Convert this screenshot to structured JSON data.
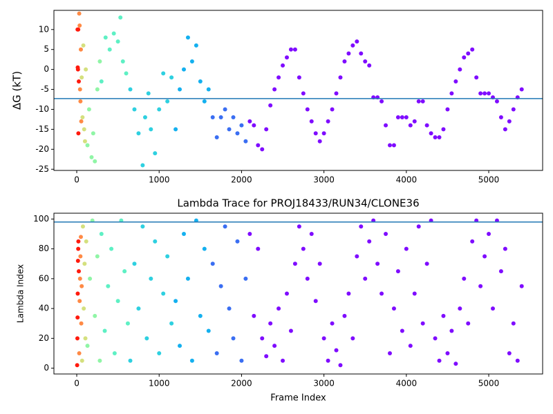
{
  "chart_data": [
    {
      "type": "scatter",
      "ylabel": "ΔG (kT)",
      "xlim": [
        -277,
        5654
      ],
      "ylim": [
        -25.3,
        14.8
      ],
      "xticks": [
        0,
        1000,
        2000,
        3000,
        4000,
        5000
      ],
      "yticks": [
        -25,
        -20,
        -15,
        -10,
        -5,
        0,
        5,
        10
      ],
      "hline": -7.3,
      "hline_color": "#1f77b4",
      "series": [
        {
          "color": "#ff1a0d",
          "x": [
            10,
            15,
            20,
            25,
            12,
            18
          ],
          "values": [
            10,
            0,
            -16,
            -3,
            0.5,
            10
          ]
        },
        {
          "color": "#ff8a45",
          "x": [
            30,
            35,
            40,
            45,
            50,
            55
          ],
          "values": [
            14,
            11,
            -5,
            -8,
            5,
            -13
          ]
        },
        {
          "color": "#d4e07e",
          "x": [
            60,
            70,
            80,
            90,
            100,
            110
          ],
          "values": [
            -2,
            -12,
            6,
            -15,
            -18,
            0
          ]
        },
        {
          "color": "#90f5a6",
          "x": [
            130,
            150,
            180,
            200,
            220,
            250,
            280
          ],
          "values": [
            -19,
            -10,
            -22,
            -16,
            -23,
            -5,
            2
          ]
        },
        {
          "color": "#5ef0c4",
          "x": [
            300,
            350,
            400,
            450,
            500,
            530,
            560,
            600
          ],
          "values": [
            -3,
            8,
            5,
            9,
            7,
            13,
            2,
            -1
          ]
        },
        {
          "color": "#2ed0e0",
          "x": [
            650,
            700,
            750,
            800,
            830,
            870,
            900,
            950,
            1000,
            1050,
            1100,
            1150
          ],
          "values": [
            -5,
            -10,
            -16,
            -24,
            -12,
            -6,
            -15,
            -21,
            -10,
            -1,
            -8,
            -2
          ]
        },
        {
          "color": "#14b0ef",
          "x": [
            1200,
            1250,
            1300,
            1350,
            1400,
            1450,
            1500,
            1550,
            1600
          ],
          "values": [
            -15,
            -5,
            0,
            8,
            2,
            6,
            -3,
            -8,
            -5
          ]
        },
        {
          "color": "#3a6ef2",
          "x": [
            1650,
            1700,
            1750,
            1800,
            1850,
            1900,
            1950,
            2000,
            2050
          ],
          "values": [
            -12,
            -17,
            -12,
            -10,
            -15,
            -12,
            -16,
            -14,
            -18
          ]
        },
        {
          "color": "#7f0cff",
          "x": [
            2100,
            2150,
            2200,
            2250,
            2300,
            2350,
            2400,
            2450,
            2500,
            2550,
            2600,
            2650,
            2700,
            2750,
            2800,
            2850,
            2900,
            2950,
            3000,
            3050,
            3100,
            3150,
            3200,
            3250,
            3300,
            3350,
            3400,
            3450,
            3500,
            3550,
            3600,
            3650,
            3700,
            3750,
            3800,
            3850,
            3900,
            3950,
            4000,
            4050,
            4100,
            4150,
            4200,
            4250,
            4300,
            4350,
            4400,
            4450,
            4500,
            4550,
            4600,
            4650,
            4700,
            4750,
            4800,
            4850,
            4900,
            4950,
            5000,
            5050,
            5100,
            5150,
            5200,
            5250,
            5300,
            5350,
            5400
          ],
          "values": [
            -13,
            -14,
            -19,
            -20,
            -15,
            -9,
            -5,
            -2,
            1,
            3,
            5,
            5,
            -2,
            -6,
            -10,
            -13,
            -16,
            -18,
            -16,
            -13,
            -10,
            -6,
            -2,
            2,
            4,
            6,
            7,
            4,
            2,
            1,
            -7,
            -7,
            -8,
            -14,
            -19,
            -19,
            -12,
            -12,
            -12,
            -14,
            -13,
            -8,
            -8,
            -14,
            -16,
            -17,
            -17,
            -15,
            -10,
            -6,
            -3,
            0,
            3,
            4,
            5,
            -2,
            -6,
            -6,
            -6,
            -7,
            -8,
            -12,
            -15,
            -13,
            -10,
            -7,
            -5
          ]
        }
      ]
    },
    {
      "type": "scatter",
      "title": "Lambda Trace for PROJ18433/RUN34/CLONE36",
      "xlabel": "Frame Index",
      "ylabel": "Lambda Index",
      "xlim": [
        -277,
        5654
      ],
      "ylim": [
        -3.9,
        103.9
      ],
      "xticks": [
        0,
        1000,
        2000,
        3000,
        4000,
        5000
      ],
      "yticks": [
        0,
        20,
        40,
        60,
        80,
        100
      ],
      "hline": 98,
      "hline_color": "#1f77b4",
      "series": [
        {
          "color": "#ff1a0d",
          "x": [
            5,
            8,
            10,
            12,
            15,
            18,
            20,
            25
          ],
          "values": [
            2,
            20,
            34,
            50,
            72,
            80,
            85,
            65
          ]
        },
        {
          "color": "#ff8a45",
          "x": [
            30,
            35,
            40,
            45,
            50,
            55,
            60
          ],
          "values": [
            10,
            45,
            60,
            75,
            88,
            30,
            55
          ]
        },
        {
          "color": "#d4e07e",
          "x": [
            65,
            75,
            85,
            95,
            105,
            115
          ],
          "values": [
            5,
            95,
            40,
            70,
            20,
            85
          ]
        },
        {
          "color": "#90f5a6",
          "x": [
            130,
            160,
            190,
            220,
            250,
            280
          ],
          "values": [
            15,
            60,
            99,
            35,
            75,
            5
          ]
        },
        {
          "color": "#5ef0c4",
          "x": [
            300,
            340,
            380,
            420,
            460,
            500,
            540,
            580,
            620
          ],
          "values": [
            90,
            25,
            55,
            80,
            10,
            45,
            99,
            65,
            30
          ]
        },
        {
          "color": "#2ed0e0",
          "x": [
            650,
            700,
            750,
            800,
            850,
            900,
            950,
            1000,
            1050,
            1100,
            1150
          ],
          "values": [
            5,
            70,
            40,
            95,
            20,
            60,
            85,
            10,
            50,
            75,
            30
          ]
        },
        {
          "color": "#14b0ef",
          "x": [
            1200,
            1250,
            1300,
            1350,
            1400,
            1450,
            1500,
            1550,
            1600
          ],
          "values": [
            45,
            15,
            90,
            60,
            5,
            99,
            35,
            80,
            25
          ]
        },
        {
          "color": "#3a6ef2",
          "x": [
            1650,
            1700,
            1750,
            1800,
            1850,
            1900,
            1950,
            2000,
            2050
          ],
          "values": [
            70,
            10,
            55,
            95,
            40,
            20,
            85,
            5,
            60
          ]
        },
        {
          "color": "#7f0cff",
          "x": [
            2100,
            2150,
            2200,
            2250,
            2300,
            2350,
            2400,
            2450,
            2500,
            2550,
            2600,
            2650,
            2700,
            2750,
            2800,
            2850,
            2900,
            2950,
            3000,
            3050,
            3100,
            3150,
            3200,
            3250,
            3300,
            3350,
            3400,
            3450,
            3500,
            3550,
            3600,
            3650,
            3700,
            3750,
            3800,
            3850,
            3900,
            3950,
            4000,
            4050,
            4100,
            4150,
            4200,
            4250,
            4300,
            4350,
            4400,
            4450,
            4500,
            4550,
            4600,
            4650,
            4700,
            4750,
            4800,
            4850,
            4900,
            4950,
            5000,
            5050,
            5100,
            5150,
            5200,
            5250,
            5300,
            5350,
            5400
          ],
          "values": [
            90,
            35,
            80,
            20,
            8,
            30,
            15,
            40,
            5,
            50,
            25,
            70,
            95,
            80,
            60,
            90,
            45,
            70,
            20,
            5,
            30,
            12,
            2,
            35,
            50,
            20,
            75,
            95,
            60,
            85,
            99,
            70,
            50,
            90,
            10,
            40,
            65,
            25,
            80,
            15,
            50,
            95,
            30,
            70,
            99,
            20,
            5,
            35,
            10,
            25,
            3,
            40,
            60,
            30,
            85,
            99,
            55,
            75,
            90,
            40,
            99,
            65,
            80,
            10,
            30,
            5,
            55
          ]
        }
      ]
    }
  ]
}
